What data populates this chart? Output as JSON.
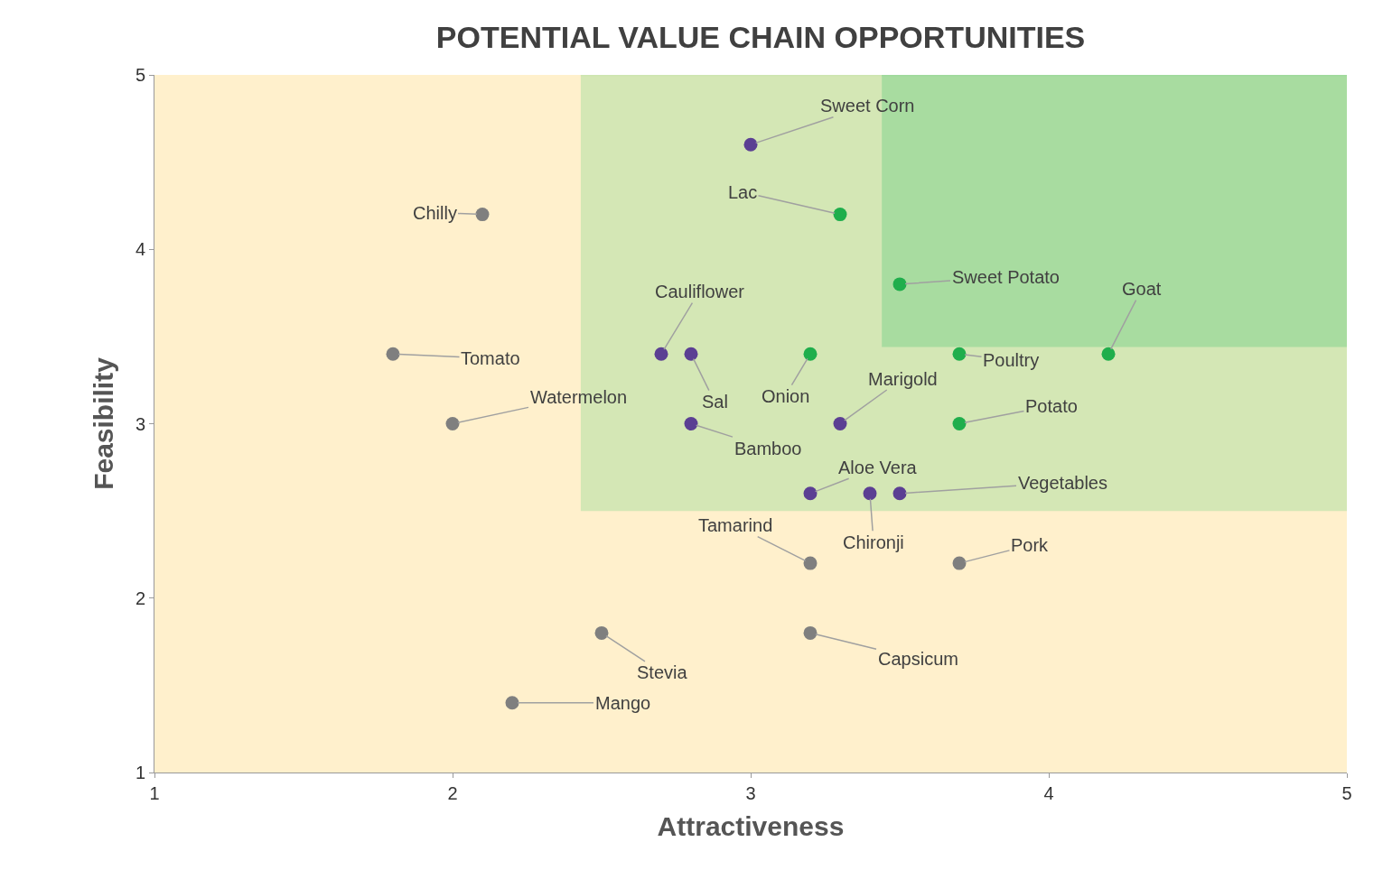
{
  "chart_data": {
    "type": "scatter",
    "title": "POTENTIAL VALUE CHAIN OPPORTUNITIES",
    "xlabel": "Attractiveness",
    "ylabel": "Feasibility",
    "series": [
      {
        "type": "line",
        "marker": "none",
        "x": [
          2.43,
          5
        ],
        "values": [
          5,
          5
        ],
        "lower": [
          2.5,
          2.5
        ],
        "upper": [
          5,
          5
        ],
        "color": "#cde5b0"
      },
      {
        "type": "line",
        "marker": "none",
        "x": [
          3.44,
          5
        ],
        "values": [
          5,
          5
        ],
        "lower": [
          3.44,
          3.44
        ],
        "upper": [
          5,
          5
        ],
        "color": "#a0d99c"
      },
      {
        "x": [
          3.0,
          3.3,
          2.1,
          3.5,
          4.2,
          2.7,
          2.8,
          3.2,
          3.7,
          1.8,
          2.0,
          2.8,
          3.3,
          3.7,
          3.2,
          3.4,
          3.5,
          3.2,
          3.7,
          2.5,
          3.2,
          2.2
        ],
        "values": [
          4.6,
          4.2,
          4.2,
          3.8,
          3.4,
          3.4,
          3.4,
          3.4,
          3.4,
          3.4,
          3.0,
          3.0,
          3.0,
          3.0,
          2.6,
          2.6,
          2.6,
          2.2,
          2.2,
          1.8,
          1.8,
          1.4
        ],
        "colors": [
          "#5b3f93",
          "#1fae4c",
          "#7f7f7f",
          "#1fae4c",
          "#1fae4c",
          "#5b3f93",
          "#5b3f93",
          "#1fae4c",
          "#1fae4c",
          "#7f7f7f",
          "#7f7f7f",
          "#5b3f93",
          "#5b3f93",
          "#1fae4c",
          "#5b3f93",
          "#5b3f93",
          "#5b3f93",
          "#7f7f7f",
          "#7f7f7f",
          "#7f7f7f",
          "#7f7f7f",
          "#7f7f7f"
        ]
      }
    ],
    "annotations": [
      {
        "text": "Sweet Corn",
        "x": 3.0,
        "y": 4.6
      },
      {
        "text": "Lac",
        "x": 3.3,
        "y": 4.2
      },
      {
        "text": "Chilly",
        "x": 2.1,
        "y": 4.2
      },
      {
        "text": "Sweet Potato",
        "x": 3.5,
        "y": 3.8
      },
      {
        "text": "Goat",
        "x": 4.2,
        "y": 3.4
      },
      {
        "text": "Cauliflower",
        "x": 2.7,
        "y": 3.4
      },
      {
        "text": "Sal",
        "x": 2.8,
        "y": 3.4
      },
      {
        "text": "Onion",
        "x": 3.2,
        "y": 3.4
      },
      {
        "text": "Poultry",
        "x": 3.7,
        "y": 3.4
      },
      {
        "text": "Tomato",
        "x": 1.8,
        "y": 3.4
      },
      {
        "text": "Watermelon",
        "x": 2.0,
        "y": 3.0
      },
      {
        "text": "Bamboo",
        "x": 2.8,
        "y": 3.0
      },
      {
        "text": "Marigold",
        "x": 3.3,
        "y": 3.0
      },
      {
        "text": "Potato",
        "x": 3.7,
        "y": 3.0
      },
      {
        "text": "Aloe Vera",
        "x": 3.2,
        "y": 2.6
      },
      {
        "text": "Chironji",
        "x": 3.4,
        "y": 2.6
      },
      {
        "text": "Vegetables",
        "x": 3.5,
        "y": 2.6
      },
      {
        "text": "Tamarind",
        "x": 3.2,
        "y": 2.2
      },
      {
        "text": "Pork",
        "x": 3.7,
        "y": 2.2
      },
      {
        "text": "Stevia",
        "x": 2.5,
        "y": 1.8
      },
      {
        "text": "Capsicum",
        "x": 3.2,
        "y": 1.8
      },
      {
        "text": "Mango",
        "x": 2.2,
        "y": 1.4
      }
    ],
    "xlim": [
      1,
      5
    ],
    "ylim": [
      1,
      5
    ],
    "xticks": [
      1,
      2,
      3,
      4,
      5
    ],
    "yticks": [
      1,
      2,
      3,
      4,
      5
    ],
    "grid": false,
    "legend": false,
    "marker": "circle"
  }
}
